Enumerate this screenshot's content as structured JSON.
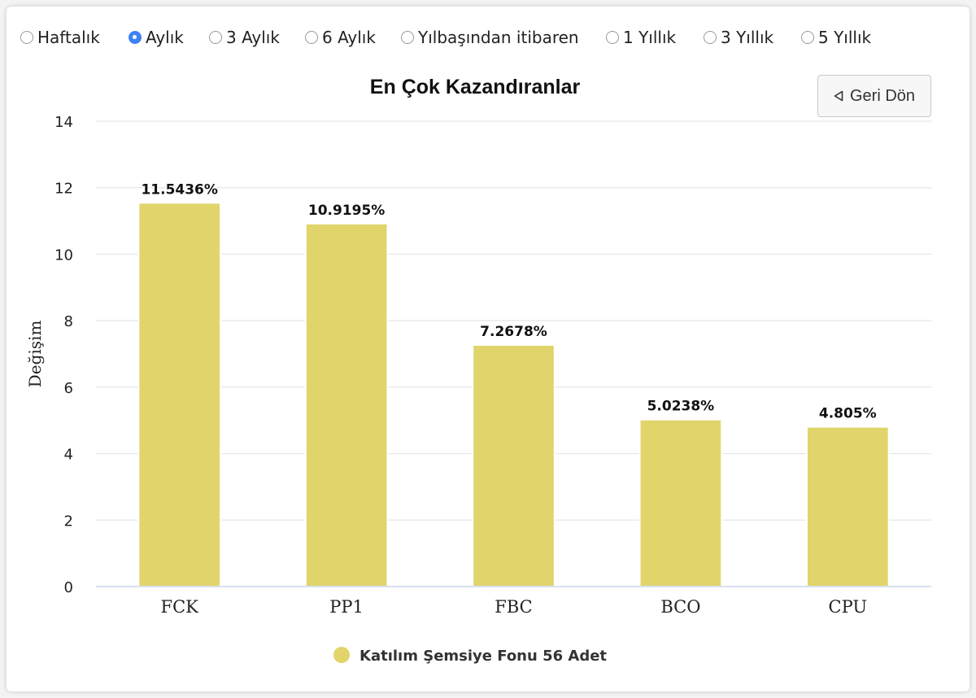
{
  "periods": [
    {
      "label": "Haftalık",
      "selected": false
    },
    {
      "label": "Aylık",
      "selected": true
    },
    {
      "label": "3 Aylık",
      "selected": false
    },
    {
      "label": "6 Aylık",
      "selected": false
    },
    {
      "label": "Yılbaşından itibaren",
      "selected": false
    },
    {
      "label": "1 Yıllık",
      "selected": false
    },
    {
      "label": "3 Yıllık",
      "selected": false
    },
    {
      "label": "5 Yıllık",
      "selected": false
    }
  ],
  "back_button": {
    "icon": "triangle-left-icon",
    "label": "Geri Dön"
  },
  "chart_data": {
    "type": "bar",
    "title": "En Çok Kazandıranlar",
    "xlabel": "",
    "ylabel": "Değişim",
    "categories": [
      "FCK",
      "PP1",
      "FBC",
      "BCO",
      "CPU"
    ],
    "series": [
      {
        "name": "Katılım Şemsiye Fonu 56 Adet",
        "values": [
          11.5436,
          10.9195,
          7.2678,
          5.0238,
          4.805
        ],
        "labels": [
          "11.5436%",
          "10.9195%",
          "7.2678%",
          "5.0238%",
          "4.805%"
        ],
        "color": "#e1d46b"
      }
    ],
    "ylim": [
      0,
      14
    ],
    "yticks": [
      0,
      2,
      4,
      6,
      8,
      10,
      12,
      14
    ],
    "grid": true,
    "legend": "bottom-center"
  },
  "colors": {
    "bar": "#e1d46b",
    "grid": "#e6e6e6",
    "axis": "#ccd6eb",
    "radio_selected": "#3d82f5"
  }
}
